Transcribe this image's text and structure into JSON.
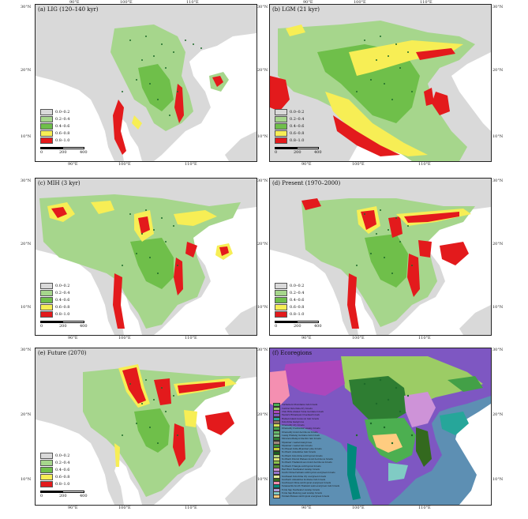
{
  "panels": [
    {
      "id": "a",
      "title": "(a) LIG (120–140 kyr)"
    },
    {
      "id": "b",
      "title": "(b) LGM (21 kyr)"
    },
    {
      "id": "c",
      "title": "(c) MIH (3 kyr)"
    },
    {
      "id": "d",
      "title": "(d) Present (1970–2000)"
    },
    {
      "id": "e",
      "title": "(e) Future (2070)"
    },
    {
      "id": "f",
      "title": "(f) Ecoregions"
    }
  ],
  "ticks": {
    "lon": [
      "90°E",
      "100°E",
      "110°E"
    ],
    "lat": [
      "30°N",
      "20°N",
      "10°N"
    ]
  },
  "legend": {
    "items": [
      {
        "label": "0.0–0.2",
        "color": "#d9d9d9"
      },
      {
        "label": "0.2–0.4",
        "color": "#a6d68c"
      },
      {
        "label": "0.4–0.6",
        "color": "#6fbf4a"
      },
      {
        "label": "0.6–0.8",
        "color": "#f7ee55"
      },
      {
        "label": "0.8–1.0",
        "color": "#e31a1c"
      }
    ]
  },
  "scale": {
    "zero": "0",
    "mid": "200",
    "end": "400"
  },
  "colors": {
    "land_bg": "#d9d9d9",
    "sea": "#ffffff",
    "point": "#1e6b2a",
    "eco_sea": "#5d8fb3"
  },
  "ecoregions": [
    {
      "label": "Cardamom Mountains rain forests",
      "color": "#4caf50"
    },
    {
      "label": "Central Indochina dry forests",
      "color": "#9ccc65"
    },
    {
      "label": "Chin Hills-Arakan Yoma montane forests",
      "color": "#ab47bc"
    },
    {
      "label": "Eastern Himalayan broadleaf forests",
      "color": "#7e57c2"
    },
    {
      "label": "Hainan Island monsoon rain forests",
      "color": "#26a69a"
    },
    {
      "label": "Indochina mangroves",
      "color": "#8d6e63"
    },
    {
      "label": "Irrawaddy dry forests",
      "color": "#d4e157"
    },
    {
      "label": "Irrawaddy freshwater swamp forests",
      "color": "#43a047"
    },
    {
      "label": "Irrawaddy moist deciduous forests",
      "color": "#66bb6a"
    },
    {
      "label": "Luang Prabang montane rain forests",
      "color": "#81c784"
    },
    {
      "label": "Mizoram-Manipur-Kachin rain forests",
      "color": "#2e7d32"
    },
    {
      "label": "Myanmar coastal mangroves",
      "color": "#a1887f"
    },
    {
      "label": "Myanmar coastal rain forests",
      "color": "#388e3c"
    },
    {
      "label": "Northeast India-Myanmar pine forests",
      "color": "#c0ca33"
    },
    {
      "label": "Northern Annamites rain forests",
      "color": "#1b5e20"
    },
    {
      "label": "Northern Indochina subtropical forests",
      "color": "#aed581"
    },
    {
      "label": "Northern Khorat Plateau moist deciduous forests",
      "color": "#dce775"
    },
    {
      "label": "Northern Thailand-Laos moist deciduous forests",
      "color": "#8bc34a"
    },
    {
      "label": "Northern Triangle subtropical forests",
      "color": "#558b2f"
    },
    {
      "label": "Red River freshwater swamp forests",
      "color": "#ce93d8"
    },
    {
      "label": "South China-Vietnam subtropical evergreen forests",
      "color": "#9575cd"
    },
    {
      "label": "Southeast Indochina dry evergreen forests",
      "color": "#e6ee9c"
    },
    {
      "label": "Southern Annamites montane rain forests",
      "color": "#33691e"
    },
    {
      "label": "Southwest China subtropical evergreen forests",
      "color": "#f48fb1"
    },
    {
      "label": "Tenasserim-South Thailand semi-evergreen rain forests",
      "color": "#00897b"
    },
    {
      "label": "Tonle Sap freshwater swamp forests",
      "color": "#b39ddb"
    },
    {
      "label": "Tonle Sap-Mekong peat swamp forests",
      "color": "#80cbc4"
    },
    {
      "label": "Yunnan Plateau subtropical evergreen forests",
      "color": "#ffcc80"
    }
  ]
}
